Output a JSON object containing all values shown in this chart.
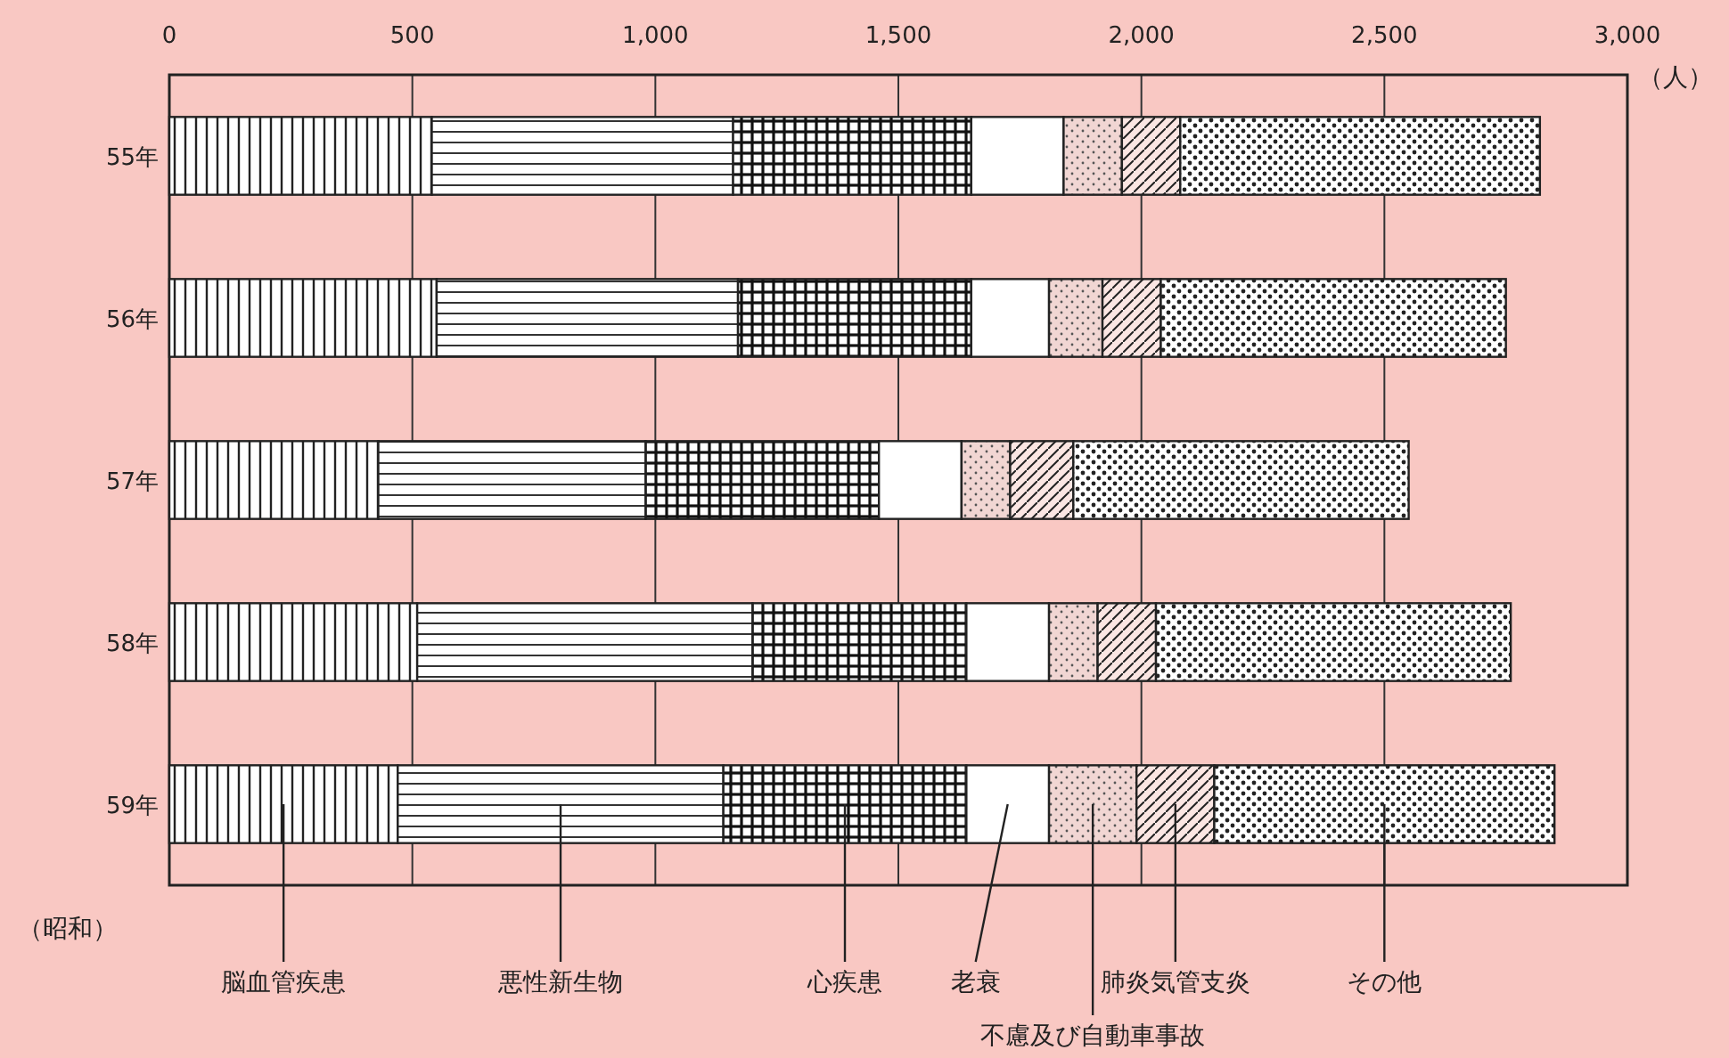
{
  "chart_data": {
    "type": "bar",
    "orientation": "horizontal",
    "stacked": true,
    "categories": [
      "55年",
      "56年",
      "57年",
      "58年",
      "59年"
    ],
    "series": [
      {
        "name": "脳血管疾患",
        "values": [
          540,
          550,
          430,
          510,
          470
        ]
      },
      {
        "name": "悪性新生物",
        "values": [
          620,
          620,
          550,
          690,
          670
        ]
      },
      {
        "name": "心疾患",
        "values": [
          490,
          480,
          480,
          440,
          500
        ]
      },
      {
        "name": "老衰",
        "values": [
          190,
          160,
          170,
          170,
          170
        ]
      },
      {
        "name": "不慮及び自動車事故",
        "values": [
          120,
          110,
          100,
          100,
          180
        ]
      },
      {
        "name": "肺炎気管支炎",
        "values": [
          120,
          120,
          130,
          120,
          160
        ]
      },
      {
        "name": "その他",
        "values": [
          740,
          710,
          690,
          730,
          700
        ]
      }
    ],
    "xlim": [
      0,
      3000
    ],
    "xticks": [
      0,
      500,
      {
        "value": 1000,
        "label": "1,000"
      },
      {
        "value": 1500,
        "label": "1,500"
      },
      {
        "value": 2000,
        "label": "2,000"
      },
      {
        "value": 2500,
        "label": "2,500"
      },
      {
        "value": 3000,
        "label": "3,000"
      }
    ],
    "xlabel": "（人）",
    "ylabel": "（昭和）",
    "grid": "x",
    "legend": "bottom"
  }
}
